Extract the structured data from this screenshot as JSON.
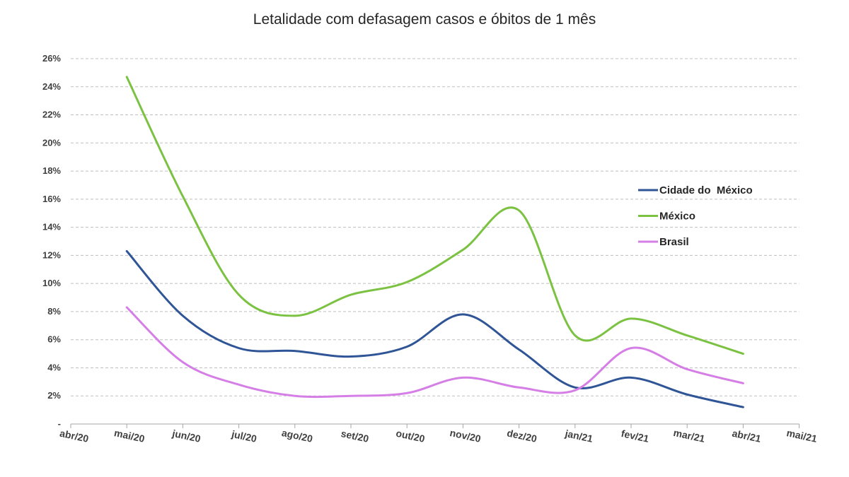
{
  "chart_data": {
    "type": "line",
    "title": "Letalidade com defasagem casos e óbitos de 1 mês",
    "xlabel": "",
    "ylabel": "",
    "categories": [
      "abr/20",
      "mai/20",
      "jun/20",
      "jul/20",
      "ago/20",
      "set/20",
      "out/20",
      "nov/20",
      "dez/20",
      "jan/21",
      "fev/21",
      "mar/21",
      "abr/21",
      "mai/21"
    ],
    "ylim": [
      0,
      26
    ],
    "yticks": [
      0,
      2,
      4,
      6,
      8,
      10,
      12,
      14,
      16,
      18,
      20,
      22,
      24,
      26
    ],
    "ytick_labels": [
      "-",
      "2%",
      "4%",
      "6%",
      "8%",
      "10%",
      "12%",
      "14%",
      "16%",
      "18%",
      "20%",
      "22%",
      "24%",
      "26%"
    ],
    "grid": true,
    "legend_position": "right",
    "series": [
      {
        "name": "Cidade do  México",
        "color": "#2f5597",
        "values": [
          null,
          12.3,
          7.7,
          5.4,
          5.2,
          4.8,
          5.5,
          7.8,
          5.3,
          2.6,
          3.3,
          2.1,
          1.2,
          null
        ]
      },
      {
        "name": "México",
        "color": "#7cc242",
        "values": [
          null,
          24.7,
          16.2,
          9.2,
          7.7,
          9.2,
          10.1,
          12.4,
          15.2,
          6.3,
          7.5,
          6.3,
          5.0,
          null
        ]
      },
      {
        "name": "Brasil",
        "color": "#d57fe6",
        "values": [
          null,
          8.3,
          4.4,
          2.8,
          2.0,
          2.0,
          2.2,
          3.3,
          2.6,
          2.4,
          5.4,
          3.9,
          2.9,
          null
        ]
      }
    ]
  }
}
